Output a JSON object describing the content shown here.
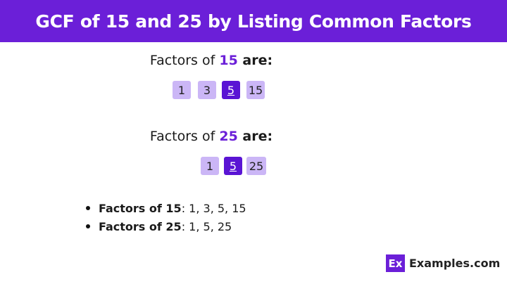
{
  "header": {
    "title": "GCF of 15 and 25 by Listing Common Factors"
  },
  "section1": {
    "prefix": "Factors of ",
    "number": "15",
    "suffix": " are:",
    "factors": [
      "1",
      "3",
      "5",
      "15"
    ],
    "highlighted": "5"
  },
  "section2": {
    "prefix": "Factors of ",
    "number": "25",
    "suffix": " are:",
    "factors": [
      "1",
      "5",
      "25"
    ],
    "highlighted": "5"
  },
  "bullets": [
    {
      "label": "Factors of 15",
      "value": " : 1, 3, 5, 15"
    },
    {
      "label": "Factors of 25",
      "value": " : 1, 5, 25"
    }
  ],
  "logo": {
    "mark": "Ex",
    "text": "Examples.com"
  },
  "colors": {
    "accent": "#6b1fd8",
    "box": "#cbb6f6",
    "highlight": "#5a14d4"
  }
}
